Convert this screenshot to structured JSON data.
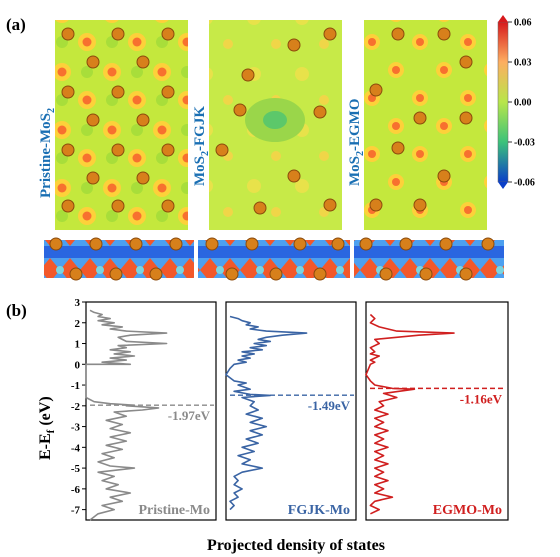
{
  "panel_a": {
    "label": "(a)",
    "map_labels": [
      {
        "main": "Pristine-MoS",
        "sub": "2",
        "rest": ""
      },
      {
        "main": "MoS",
        "sub": "2",
        "rest": "-FGJK"
      },
      {
        "main": "MoS",
        "sub": "2",
        "rest": "-EGMO"
      }
    ],
    "colorbar": {
      "ticks": [
        "0.06",
        "0.03",
        "0.00",
        "-0.03",
        "-0.06"
      ],
      "tick_values": [
        0.06,
        0.03,
        0.0,
        -0.03,
        -0.06
      ],
      "colors": [
        "#d7191c",
        "#fdae61",
        "#b8e64a",
        "#3cc27a",
        "#0b3fc8"
      ]
    }
  },
  "panel_b": {
    "label": "(b)"
  },
  "chart_data": {
    "type": "line",
    "ylabel": "E-E",
    "ylabel_sub": "f",
    "ylabel_unit": " (eV)",
    "xlabel": "Projected density of states",
    "ylim": [
      -7.5,
      3
    ],
    "yticks": [
      3,
      2,
      1,
      0,
      -1,
      -2,
      -3,
      -4,
      -5,
      -6,
      -7
    ],
    "series": [
      {
        "name": "Pristine-Mo",
        "color": "#8a8a8a",
        "marker_label": "-1.97eV",
        "dashed_level": -1.97,
        "points": [
          [
            -7.5,
            0.05
          ],
          [
            -7.2,
            0.15
          ],
          [
            -7.0,
            0.35
          ],
          [
            -6.8,
            0.2
          ],
          [
            -6.6,
            0.45
          ],
          [
            -6.4,
            0.3
          ],
          [
            -6.2,
            0.55
          ],
          [
            -6.0,
            0.25
          ],
          [
            -5.8,
            0.4
          ],
          [
            -5.6,
            0.2
          ],
          [
            -5.4,
            0.35
          ],
          [
            -5.2,
            0.15
          ],
          [
            -5.0,
            0.6
          ],
          [
            -4.9,
            0.3
          ],
          [
            -4.7,
            0.15
          ],
          [
            -4.5,
            0.35
          ],
          [
            -4.3,
            0.2
          ],
          [
            -4.1,
            0.45
          ],
          [
            -3.9,
            0.25
          ],
          [
            -3.7,
            0.5
          ],
          [
            -3.5,
            0.3
          ],
          [
            -3.3,
            0.55
          ],
          [
            -3.1,
            0.3
          ],
          [
            -2.9,
            0.45
          ],
          [
            -2.7,
            0.25
          ],
          [
            -2.5,
            0.5
          ],
          [
            -2.3,
            0.35
          ],
          [
            -2.2,
            0.7
          ],
          [
            -2.1,
            0.9
          ],
          [
            -2.0,
            0.5
          ],
          [
            -1.97,
            0.6
          ],
          [
            -1.9,
            0.3
          ],
          [
            -1.8,
            0.1
          ],
          [
            -1.6,
            0.0
          ],
          [
            0.0,
            0.0
          ],
          [
            0.0,
            0.55
          ],
          [
            0.1,
            0.2
          ],
          [
            0.2,
            0.5
          ],
          [
            0.3,
            0.3
          ],
          [
            0.4,
            0.6
          ],
          [
            0.5,
            0.35
          ],
          [
            0.6,
            0.55
          ],
          [
            0.7,
            0.3
          ],
          [
            0.8,
            0.5
          ],
          [
            0.9,
            0.4
          ],
          [
            1.0,
            1.0
          ],
          [
            1.1,
            0.5
          ],
          [
            1.2,
            0.45
          ],
          [
            1.3,
            0.4
          ],
          [
            1.4,
            0.55
          ],
          [
            1.5,
            1.0
          ],
          [
            1.6,
            0.5
          ],
          [
            1.7,
            0.3
          ],
          [
            1.8,
            0.45
          ],
          [
            1.9,
            0.2
          ],
          [
            2.0,
            0.35
          ],
          [
            2.1,
            0.15
          ],
          [
            2.2,
            0.3
          ],
          [
            2.3,
            0.15
          ],
          [
            2.4,
            0.2
          ],
          [
            2.5,
            0.1
          ],
          [
            2.6,
            0.05
          ]
        ]
      },
      {
        "name": "FGJK-Mo",
        "color": "#3a64a4",
        "marker_label": "-1.49eV",
        "dashed_level": -1.49,
        "points": [
          [
            -7.0,
            0.05
          ],
          [
            -6.8,
            0.1
          ],
          [
            -6.6,
            0.05
          ],
          [
            -6.4,
            0.15
          ],
          [
            -6.2,
            0.1
          ],
          [
            -6.0,
            0.2
          ],
          [
            -5.8,
            0.1
          ],
          [
            -5.6,
            0.15
          ],
          [
            -5.4,
            0.1
          ],
          [
            -5.2,
            0.2
          ],
          [
            -5.0,
            0.45
          ],
          [
            -4.8,
            0.2
          ],
          [
            -4.6,
            0.3
          ],
          [
            -4.4,
            0.15
          ],
          [
            -4.2,
            0.35
          ],
          [
            -4.0,
            0.2
          ],
          [
            -3.8,
            0.4
          ],
          [
            -3.6,
            0.25
          ],
          [
            -3.4,
            0.45
          ],
          [
            -3.2,
            0.3
          ],
          [
            -3.0,
            0.5
          ],
          [
            -2.8,
            0.3
          ],
          [
            -2.6,
            0.45
          ],
          [
            -2.4,
            0.25
          ],
          [
            -2.2,
            0.4
          ],
          [
            -2.0,
            0.3
          ],
          [
            -1.8,
            0.35
          ],
          [
            -1.6,
            0.2
          ],
          [
            -1.5,
            0.55
          ],
          [
            -1.45,
            0.3
          ],
          [
            -1.3,
            0.1
          ],
          [
            -1.2,
            0.3
          ],
          [
            -1.0,
            0.15
          ],
          [
            -0.9,
            0.25
          ],
          [
            -0.8,
            0.1
          ],
          [
            -0.5,
            0.0
          ],
          [
            -0.2,
            0.05
          ],
          [
            0.0,
            0.1
          ],
          [
            0.1,
            0.25
          ],
          [
            0.2,
            0.15
          ],
          [
            0.3,
            0.3
          ],
          [
            0.4,
            0.2
          ],
          [
            0.5,
            0.35
          ],
          [
            0.6,
            0.2
          ],
          [
            0.7,
            0.45
          ],
          [
            0.8,
            0.3
          ],
          [
            0.9,
            0.5
          ],
          [
            1.0,
            0.35
          ],
          [
            1.1,
            0.55
          ],
          [
            1.2,
            0.4
          ],
          [
            1.3,
            0.5
          ],
          [
            1.4,
            0.7
          ],
          [
            1.5,
            1.0
          ],
          [
            1.6,
            0.5
          ],
          [
            1.7,
            0.3
          ],
          [
            1.8,
            0.4
          ],
          [
            1.9,
            0.25
          ],
          [
            2.0,
            0.3
          ],
          [
            2.1,
            0.2
          ],
          [
            2.2,
            0.15
          ],
          [
            2.3,
            0.05
          ]
        ]
      },
      {
        "name": "EGMO-Mo",
        "color": "#d01f1f",
        "marker_label": "-1.16eV",
        "dashed_level": -1.16,
        "points": [
          [
            -7.2,
            0.05
          ],
          [
            -7.0,
            0.15
          ],
          [
            -6.8,
            0.05
          ],
          [
            -6.6,
            0.1
          ],
          [
            -6.4,
            0.3
          ],
          [
            -6.2,
            0.1
          ],
          [
            -6.0,
            0.2
          ],
          [
            -5.8,
            0.1
          ],
          [
            -5.6,
            0.25
          ],
          [
            -5.4,
            0.1
          ],
          [
            -5.2,
            0.2
          ],
          [
            -5.0,
            0.1
          ],
          [
            -4.8,
            0.25
          ],
          [
            -4.6,
            0.1
          ],
          [
            -4.4,
            0.2
          ],
          [
            -4.2,
            0.1
          ],
          [
            -4.0,
            0.25
          ],
          [
            -3.8,
            0.1
          ],
          [
            -3.6,
            0.2
          ],
          [
            -3.4,
            0.1
          ],
          [
            -3.2,
            0.25
          ],
          [
            -3.0,
            0.1
          ],
          [
            -2.8,
            0.2
          ],
          [
            -2.6,
            0.1
          ],
          [
            -2.4,
            0.25
          ],
          [
            -2.2,
            0.1
          ],
          [
            -2.0,
            0.2
          ],
          [
            -1.8,
            0.15
          ],
          [
            -1.6,
            0.35
          ],
          [
            -1.4,
            0.2
          ],
          [
            -1.2,
            0.55
          ],
          [
            -1.16,
            0.3
          ],
          [
            -1.0,
            0.1
          ],
          [
            -0.8,
            0.05
          ],
          [
            -0.5,
            0.0
          ],
          [
            0.0,
            0.05
          ],
          [
            0.1,
            0.1
          ],
          [
            0.2,
            0.05
          ],
          [
            0.4,
            0.15
          ],
          [
            0.5,
            0.05
          ],
          [
            0.6,
            0.1
          ],
          [
            0.8,
            0.05
          ],
          [
            1.0,
            0.15
          ],
          [
            1.2,
            0.1
          ],
          [
            1.4,
            0.6
          ],
          [
            1.5,
            1.0
          ],
          [
            1.6,
            0.35
          ],
          [
            1.8,
            0.15
          ],
          [
            2.0,
            0.05
          ],
          [
            2.2,
            0.1
          ],
          [
            2.4,
            0.05
          ]
        ]
      }
    ]
  }
}
